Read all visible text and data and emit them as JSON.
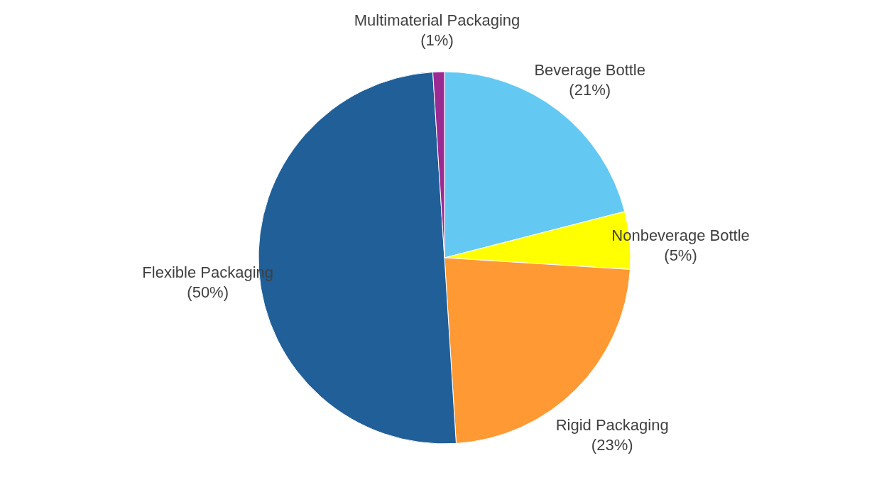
{
  "chart_data": {
    "type": "pie",
    "categories": [
      "Beverage Bottle",
      "Nonbeverage Bottle",
      "Rigid Packaging",
      "Flexible Packaging",
      "Multimaterial Packaging"
    ],
    "values": [
      21,
      5,
      23,
      50,
      1
    ],
    "colors": [
      "#63c9f2",
      "#ffff00",
      "#ff9933",
      "#215f99",
      "#9b2a93"
    ],
    "value_labels": [
      "(21%)",
      "(5%)",
      "(23%)",
      "(50%)",
      "(1%)"
    ]
  }
}
